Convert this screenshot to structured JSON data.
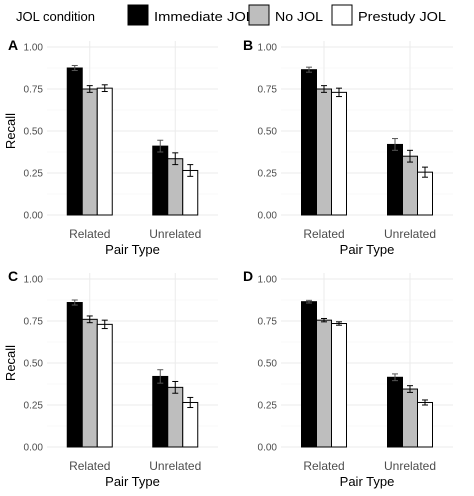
{
  "legend": {
    "title": "JOL condition",
    "entries": [
      {
        "name": "Immediate JOL",
        "color": "#000000"
      },
      {
        "name": "No JOL",
        "color": "#bebebe"
      },
      {
        "name": "Prestudy JOL",
        "color": "#ffffff"
      }
    ]
  },
  "chart_data": [
    {
      "type": "bar",
      "panel": "A",
      "categories": [
        "Related",
        "Unrelated"
      ],
      "xlabel": "Pair Type",
      "ylabel": "Recall",
      "ylim": [
        0,
        1
      ],
      "yticks": [
        "0.00",
        "0.25",
        "0.50",
        "0.75",
        "1.00"
      ],
      "series": [
        {
          "name": "Immediate JOL",
          "values": [
            0.875,
            0.41
          ],
          "errors": [
            0.015,
            0.035
          ]
        },
        {
          "name": "No JOL",
          "values": [
            0.75,
            0.335
          ],
          "errors": [
            0.02,
            0.035
          ]
        },
        {
          "name": "Prestudy JOL",
          "values": [
            0.755,
            0.265
          ],
          "errors": [
            0.02,
            0.035
          ]
        }
      ]
    },
    {
      "type": "bar",
      "panel": "B",
      "categories": [
        "Related",
        "Unrelated"
      ],
      "xlabel": "Pair Type",
      "ylabel": "",
      "ylim": [
        0,
        1
      ],
      "yticks": [
        "0.00",
        "0.25",
        "0.50",
        "0.75",
        "1.00"
      ],
      "series": [
        {
          "name": "Immediate JOL",
          "values": [
            0.865,
            0.42
          ],
          "errors": [
            0.015,
            0.035
          ]
        },
        {
          "name": "No JOL",
          "values": [
            0.75,
            0.35
          ],
          "errors": [
            0.02,
            0.035
          ]
        },
        {
          "name": "Prestudy JOL",
          "values": [
            0.73,
            0.255
          ],
          "errors": [
            0.025,
            0.03
          ]
        }
      ]
    },
    {
      "type": "bar",
      "panel": "C",
      "categories": [
        "Related",
        "Unrelated"
      ],
      "xlabel": "Pair Type",
      "ylabel": "Recall",
      "ylim": [
        0,
        1
      ],
      "yticks": [
        "0.00",
        "0.25",
        "0.50",
        "0.75",
        "1.00"
      ],
      "series": [
        {
          "name": "Immediate JOL",
          "values": [
            0.86,
            0.42
          ],
          "errors": [
            0.015,
            0.04
          ]
        },
        {
          "name": "No JOL",
          "values": [
            0.76,
            0.355
          ],
          "errors": [
            0.02,
            0.035
          ]
        },
        {
          "name": "Prestudy JOL",
          "values": [
            0.73,
            0.265
          ],
          "errors": [
            0.025,
            0.03
          ]
        }
      ]
    },
    {
      "type": "bar",
      "panel": "D",
      "categories": [
        "Related",
        "Unrelated"
      ],
      "xlabel": "Pair Type",
      "ylabel": "",
      "ylim": [
        0,
        1
      ],
      "yticks": [
        "0.00",
        "0.25",
        "0.50",
        "0.75",
        "1.00"
      ],
      "series": [
        {
          "name": "Immediate JOL",
          "values": [
            0.865,
            0.415
          ],
          "errors": [
            0.008,
            0.02
          ]
        },
        {
          "name": "No JOL",
          "values": [
            0.755,
            0.345
          ],
          "errors": [
            0.01,
            0.02
          ]
        },
        {
          "name": "Prestudy JOL",
          "values": [
            0.735,
            0.265
          ],
          "errors": [
            0.01,
            0.015
          ]
        }
      ]
    }
  ]
}
